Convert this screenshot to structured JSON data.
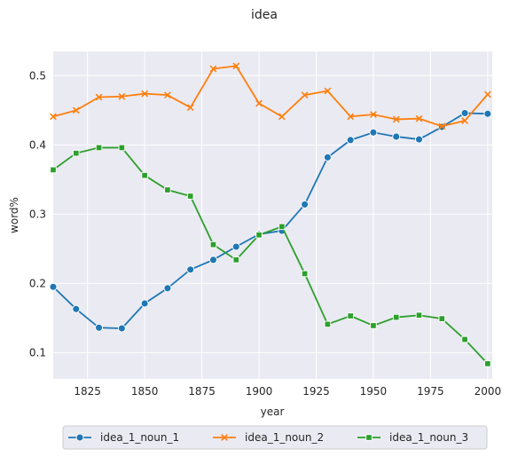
{
  "chart_data": {
    "type": "line",
    "title": "idea",
    "xlabel": "year",
    "ylabel": "word%",
    "xlim": [
      1810,
      2002
    ],
    "ylim": [
      0.062,
      0.535
    ],
    "xticks": [
      1825,
      1850,
      1875,
      1900,
      1925,
      1950,
      1975,
      2000
    ],
    "yticks": [
      0.1,
      0.2,
      0.3,
      0.4,
      0.5
    ],
    "grid": true,
    "legend_position": "bottom-center",
    "x": [
      1810,
      1820,
      1830,
      1840,
      1850,
      1860,
      1870,
      1880,
      1890,
      1900,
      1910,
      1920,
      1930,
      1940,
      1950,
      1960,
      1970,
      1980,
      1990,
      2000
    ],
    "series": [
      {
        "name": "idea_1_noun_1",
        "color": "#1f77b4",
        "marker": "circle",
        "values": [
          0.195,
          0.163,
          0.136,
          0.135,
          0.171,
          0.193,
          0.22,
          0.234,
          0.253,
          0.271,
          0.276,
          0.314,
          0.382,
          0.407,
          0.418,
          0.412,
          0.408,
          0.426,
          0.446,
          0.445
        ]
      },
      {
        "name": "idea_1_noun_2",
        "color": "#ff7f0e",
        "marker": "x",
        "values": [
          0.441,
          0.45,
          0.469,
          0.47,
          0.474,
          0.472,
          0.454,
          0.51,
          0.514,
          0.46,
          0.441,
          0.472,
          0.478,
          0.441,
          0.444,
          0.437,
          0.438,
          0.427,
          0.435,
          0.473
        ]
      },
      {
        "name": "idea_1_noun_3",
        "color": "#2ca02c",
        "marker": "square",
        "values": [
          0.364,
          0.388,
          0.396,
          0.396,
          0.356,
          0.335,
          0.326,
          0.256,
          0.234,
          0.27,
          0.282,
          0.214,
          0.141,
          0.153,
          0.139,
          0.151,
          0.154,
          0.149,
          0.119,
          0.084
        ]
      }
    ]
  }
}
